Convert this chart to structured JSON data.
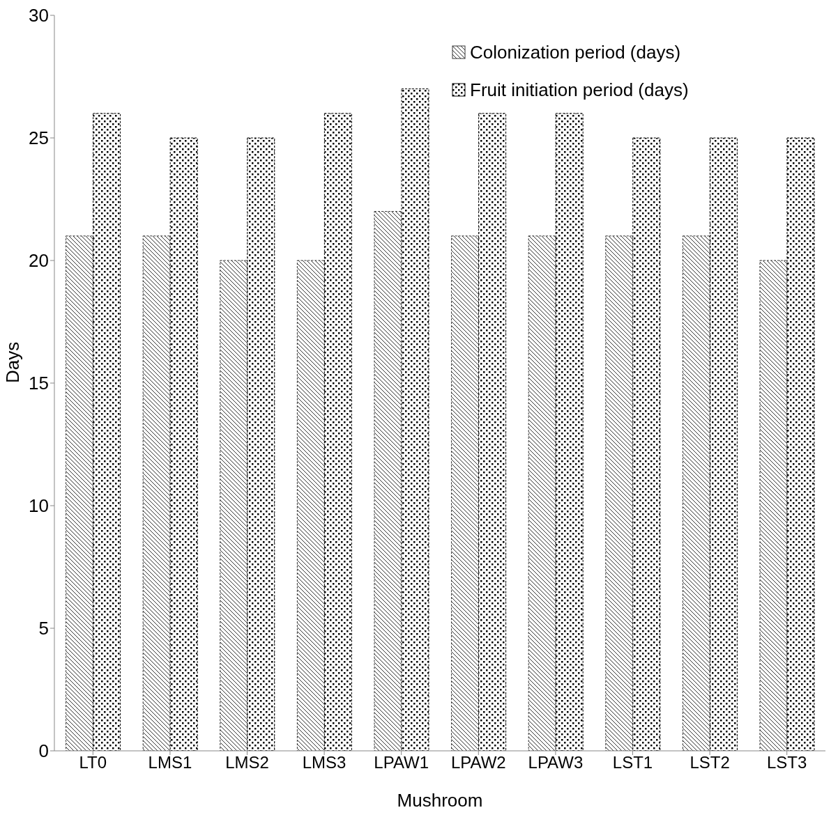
{
  "chart_data": {
    "type": "bar",
    "xlabel": "Mushroom",
    "ylabel": "Days",
    "categories": [
      "LT0",
      "LMS1",
      "LMS2",
      "LMS3",
      "LPAW1",
      "LPAW2",
      "LPAW3",
      "LST1",
      "LST2",
      "LST3"
    ],
    "series": [
      {
        "name": "Colonization period (days)",
        "color": "#333333",
        "values": [
          21,
          21,
          20,
          20,
          22,
          21,
          21,
          21,
          21,
          20
        ]
      },
      {
        "name": "Fruit initiation period (days)",
        "color": "#000000",
        "values": [
          26,
          25,
          25,
          26,
          27,
          26,
          26,
          25,
          25,
          25
        ]
      }
    ],
    "ylim": [
      0,
      30
    ],
    "yticks": [
      0,
      5,
      10,
      15,
      20,
      25,
      30
    ],
    "grid": false,
    "legend": "top right"
  }
}
